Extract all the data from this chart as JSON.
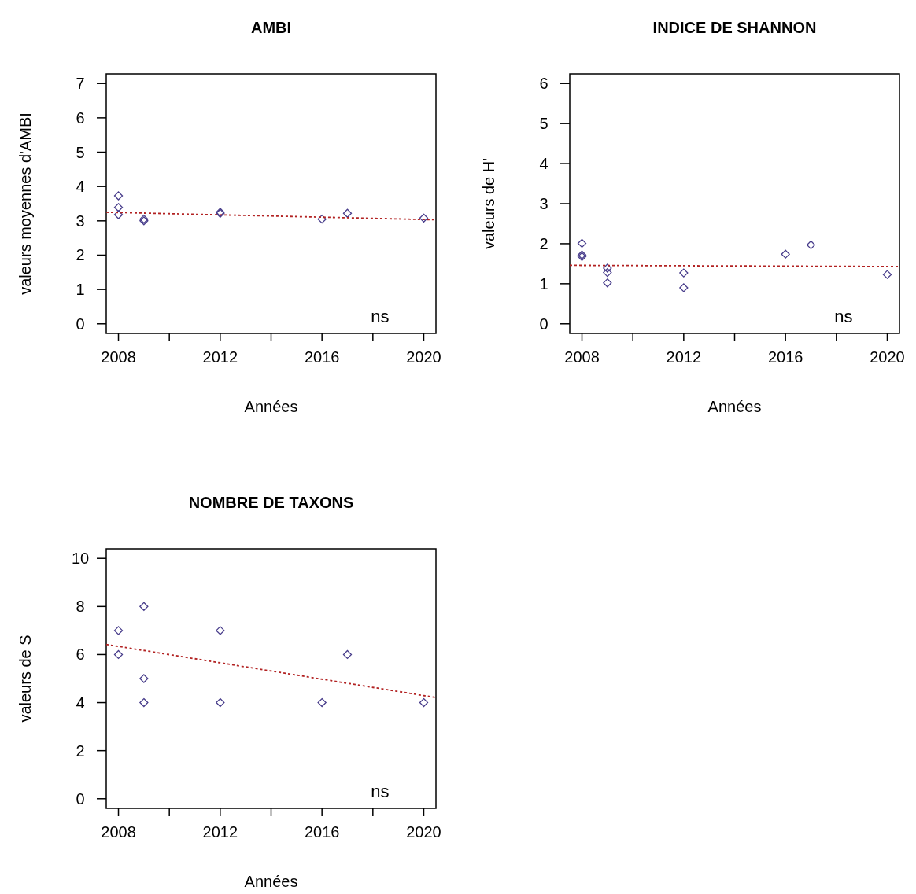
{
  "chart_data": [
    {
      "type": "scatter",
      "title": "AMBI",
      "xlabel": "Années",
      "ylabel": "valeurs moyennes d'AMBI",
      "marker": "diamond",
      "grid": false,
      "annotations": [
        "ns"
      ],
      "xlim": [
        2007.52,
        2020.48
      ],
      "ylim": [
        -0.28,
        7.28
      ],
      "xticks": [
        2008,
        {
          "value": 2010,
          "label": null
        },
        2012,
        {
          "value": 2014,
          "label": null
        },
        2016,
        {
          "value": 2018,
          "label": null
        },
        2020
      ],
      "yticks": [
        0,
        1,
        2,
        3,
        4,
        5,
        6,
        7
      ],
      "series": [
        {
          "color": "#483d8b",
          "x": [
            2008,
            2008,
            2008,
            2009,
            2009,
            2012,
            2012,
            2016,
            2017,
            2020
          ],
          "values": [
            3.73,
            3.39,
            3.18,
            3.05,
            3.0,
            3.25,
            3.22,
            3.05,
            3.22,
            3.08
          ]
        },
        {
          "type": "line",
          "color": "#b22222",
          "line_style": "dotted",
          "marker": "none",
          "x": [
            2007.52,
            2020.48
          ],
          "values": [
            3.25,
            3.03
          ]
        }
      ]
    },
    {
      "type": "scatter",
      "title": "INDICE DE SHANNON",
      "xlabel": "Années",
      "ylabel": "valeurs de H'",
      "marker": "diamond",
      "grid": false,
      "annotations": [
        "ns"
      ],
      "xlim": [
        2007.52,
        2020.48
      ],
      "ylim": [
        -0.24,
        6.24
      ],
      "xticks": [
        2008,
        {
          "value": 2010,
          "label": null
        },
        2012,
        {
          "value": 2014,
          "label": null
        },
        2016,
        {
          "value": 2018,
          "label": null
        },
        2020
      ],
      "yticks": [
        0,
        1,
        2,
        3,
        4,
        5,
        6
      ],
      "series": [
        {
          "color": "#483d8b",
          "x": [
            2008,
            2008,
            2008,
            2009,
            2009,
            2009,
            2012,
            2012,
            2016,
            2017,
            2020
          ],
          "values": [
            2.01,
            1.72,
            1.68,
            1.39,
            1.28,
            1.02,
            1.27,
            0.9,
            1.74,
            1.97,
            1.23
          ]
        },
        {
          "type": "line",
          "color": "#b22222",
          "line_style": "dotted",
          "marker": "none",
          "x": [
            2007.52,
            2020.48
          ],
          "values": [
            1.46,
            1.43
          ]
        }
      ]
    },
    {
      "type": "scatter",
      "title": "NOMBRE DE TAXONS",
      "xlabel": "Années",
      "ylabel": "valeurs de S",
      "marker": "diamond",
      "grid": false,
      "annotations": [
        "ns"
      ],
      "xlim": [
        2007.52,
        2020.48
      ],
      "ylim": [
        -0.4,
        10.4
      ],
      "xticks": [
        2008,
        {
          "value": 2010,
          "label": null
        },
        2012,
        {
          "value": 2014,
          "label": null
        },
        2016,
        {
          "value": 2018,
          "label": null
        },
        2020
      ],
      "yticks": [
        0,
        2,
        4,
        6,
        8,
        10
      ],
      "series": [
        {
          "color": "#483d8b",
          "x": [
            2008,
            2008,
            2009,
            2009,
            2009,
            2012,
            2012,
            2016,
            2017,
            2020
          ],
          "values": [
            7,
            6,
            8,
            5,
            4,
            7,
            4,
            4,
            6,
            4
          ]
        },
        {
          "type": "line",
          "color": "#b22222",
          "line_style": "dotted",
          "marker": "none",
          "x": [
            2007.52,
            2020.48
          ],
          "values": [
            6.42,
            4.21
          ]
        }
      ]
    }
  ]
}
